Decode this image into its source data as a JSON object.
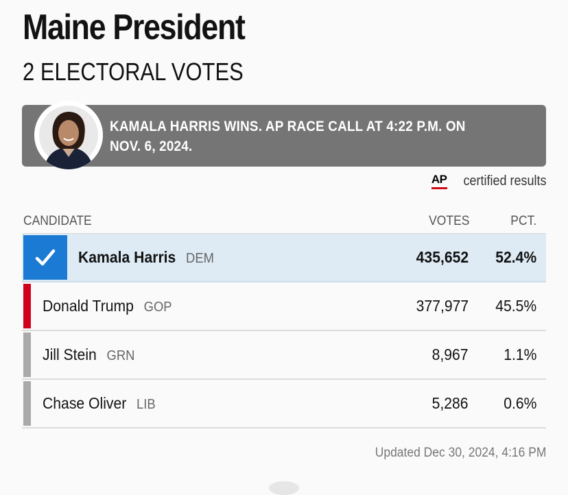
{
  "header": {
    "title": "Maine President",
    "subtitle": "2 ELECTORAL VOTES"
  },
  "banner": {
    "text": "KAMALA HARRIS WINS. AP RACE CALL AT 4:22 P.M. ON NOV. 6, 2024.",
    "background": "#757575"
  },
  "certified": {
    "logo": "AP",
    "label": "certified results"
  },
  "table": {
    "headers": {
      "candidate": "CANDIDATE",
      "votes": "VOTES",
      "pct": "PCT."
    },
    "rows": [
      {
        "name": "Kamala Harris",
        "party": "DEM",
        "votes": "435,652",
        "pct": "52.4%",
        "color": "#1b7ad3",
        "winner": true
      },
      {
        "name": "Donald Trump",
        "party": "GOP",
        "votes": "377,977",
        "pct": "45.5%",
        "color": "#d0021b",
        "winner": false
      },
      {
        "name": "Jill Stein",
        "party": "GRN",
        "votes": "8,967",
        "pct": "1.1%",
        "color": "#aaaaaa",
        "winner": false
      },
      {
        "name": "Chase Oliver",
        "party": "LIB",
        "votes": "5,286",
        "pct": "0.6%",
        "color": "#aaaaaa",
        "winner": false
      }
    ]
  },
  "footer": {
    "updated": "Updated Dec 30, 2024, 4:16 PM"
  },
  "icons": {
    "winner_check": "check-icon"
  }
}
